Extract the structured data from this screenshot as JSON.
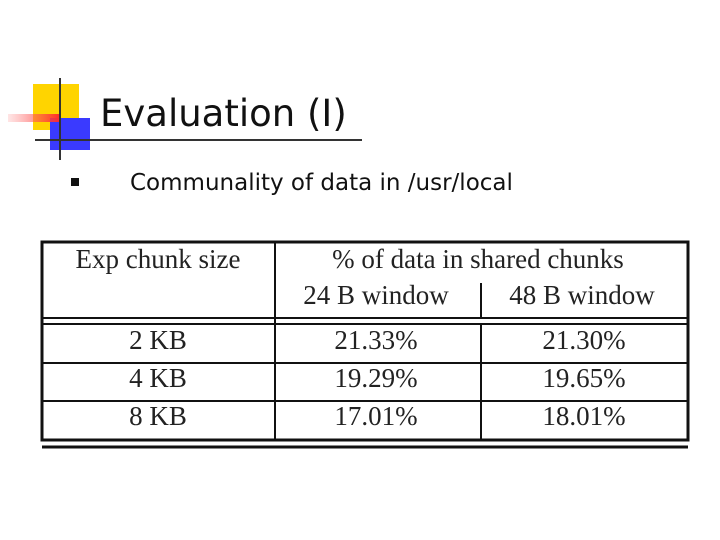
{
  "header": {
    "title": "Evaluation (I)"
  },
  "bullets": [
    "Communality of data in /usr/local"
  ],
  "table": {
    "header": {
      "first": "Exp chunk size",
      "group": "% of data in shared chunks",
      "sub": [
        "24 B window",
        "48 B window"
      ]
    },
    "rows": [
      [
        "2 KB",
        "21.33%",
        "21.30%"
      ],
      [
        "4 KB",
        "19.29%",
        "19.65%"
      ],
      [
        "8 KB",
        "17.01%",
        "18.01%"
      ]
    ]
  }
}
